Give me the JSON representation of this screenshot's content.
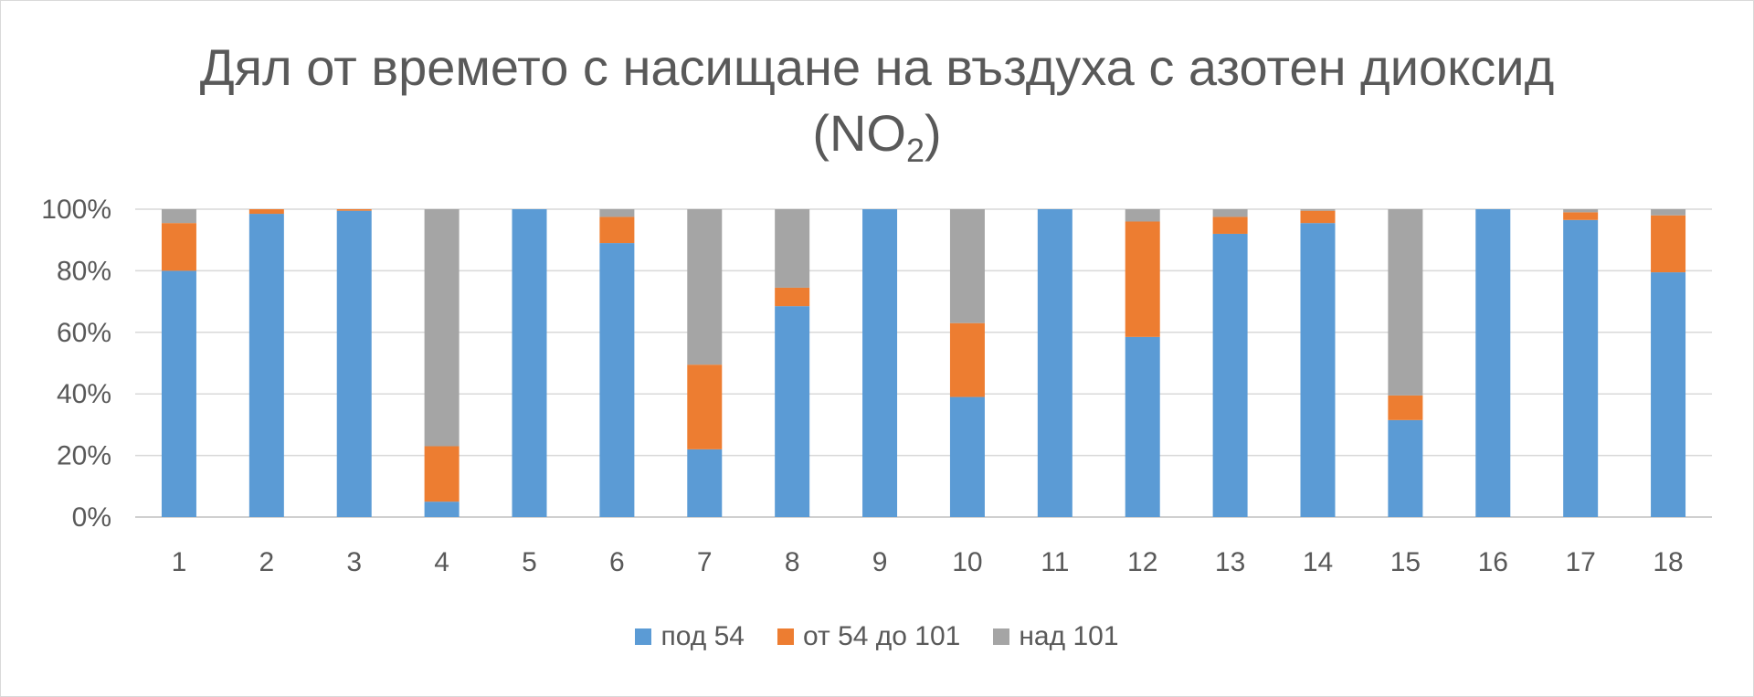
{
  "chart_data": {
    "type": "bar",
    "stacked": true,
    "title_line1": "Дял от времето с насищане на въздуха с азотен диоксид",
    "title_line2_prefix": "(NO",
    "title_line2_sub": "2",
    "title_line2_suffix": ")",
    "categories": [
      "1",
      "2",
      "3",
      "4",
      "5",
      "6",
      "7",
      "8",
      "9",
      "10",
      "11",
      "12",
      "13",
      "14",
      "15",
      "16",
      "17",
      "18"
    ],
    "ylim": [
      0,
      100
    ],
    "y_ticks": [
      "0%",
      "20%",
      "40%",
      "60%",
      "80%",
      "100%"
    ],
    "grid": true,
    "legend_position": "bottom",
    "series": [
      {
        "name": "под 54",
        "color": "#5b9bd5",
        "values": [
          80,
          98.5,
          99.5,
          5,
          100,
          89,
          22,
          68.5,
          100,
          39,
          100,
          58.5,
          92,
          95.5,
          31.5,
          100,
          96.5,
          79.5
        ]
      },
      {
        "name": "от 54 до 101",
        "color": "#ed7d31",
        "values": [
          15.5,
          1.5,
          0.5,
          18,
          0,
          8.5,
          27.5,
          6,
          0,
          24,
          0,
          37.5,
          5.5,
          4,
          8,
          0,
          2.5,
          18.5
        ]
      },
      {
        "name": "над 101",
        "color": "#a5a5a5",
        "values": [
          4.5,
          0,
          0,
          77,
          0,
          2.5,
          50.5,
          25.5,
          0,
          37,
          0,
          4,
          2.5,
          0.5,
          60.5,
          0,
          1,
          2
        ]
      }
    ]
  }
}
